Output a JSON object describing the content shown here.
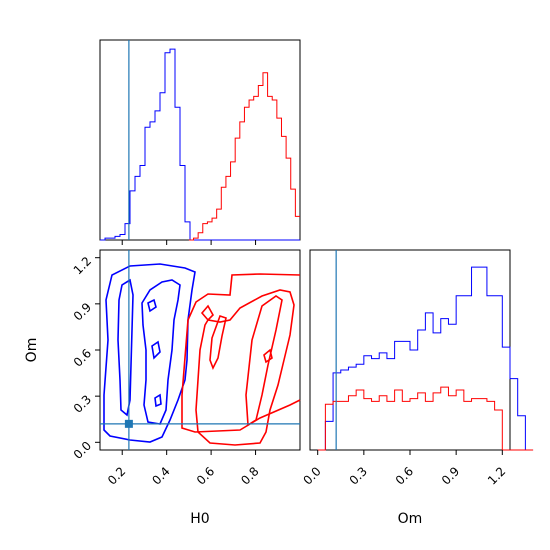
{
  "chart_data": {
    "type": "corner",
    "parameters": [
      "H0",
      "Om"
    ],
    "truths": {
      "H0": 0.23,
      "Om": 0.12
    },
    "colors": {
      "series_a": "#0000ff",
      "series_b": "#ff0000",
      "truth": "#1f77b4"
    },
    "panels": [
      {
        "id": "hist-H0",
        "type": "histogram",
        "xlabel": "",
        "xlim": [
          0.1,
          1.0
        ],
        "xticks": [
          0.2,
          0.4,
          0.6,
          0.8
        ],
        "tick_labels_shown": false,
        "bin_edges": [
          0.1,
          0.1225,
          0.145,
          0.1675,
          0.19,
          0.2125,
          0.235,
          0.2575,
          0.28,
          0.3025,
          0.325,
          0.3475,
          0.37,
          0.3925,
          0.415,
          0.4375,
          0.46,
          0.4825,
          0.505,
          0.5275,
          0.55,
          0.5725,
          0.595,
          0.6175,
          0.64,
          0.6625,
          0.685,
          0.7075,
          0.73,
          0.7525,
          0.775,
          0.7975,
          0.82,
          0.8425,
          0.865,
          0.8875,
          0.91,
          0.9325,
          0.955,
          0.9775,
          1.0
        ],
        "series": [
          {
            "counts": [
              0,
              1,
              1,
              2,
              3,
              9,
              27,
              35,
              41,
              62,
              65,
              71,
              81,
              103,
              105,
              73,
              41,
              10,
              0,
              0,
              0,
              0,
              0,
              0,
              0,
              0,
              0,
              0,
              0,
              0,
              0,
              0,
              0,
              0,
              0,
              0,
              0,
              0,
              0,
              0
            ]
          },
          {
            "counts": [
              0,
              0,
              0,
              0,
              0,
              0,
              0,
              0,
              0,
              0,
              0,
              0,
              0,
              0,
              0,
              0,
              0,
              0,
              0,
              0,
              0,
              0,
              0,
              0,
              0,
              0,
              0,
              0,
              0,
              0,
              0,
              0,
              0,
              0,
              0,
              0,
              0,
              0,
              0,
              0
            ]
          }
        ],
        "series_b_bins": {
          "x_start": 0.5,
          "x_end": 1.0,
          "counts": [
            0,
            1,
            4,
            9,
            10,
            12,
            17,
            29,
            35,
            43,
            56,
            65,
            73,
            77,
            79,
            85,
            92,
            79,
            77,
            67,
            57,
            45,
            28,
            13
          ]
        },
        "ylim": [
          0,
          110
        ]
      },
      {
        "id": "contour-H0-Om",
        "type": "contour",
        "xlabel": "H0",
        "ylabel": "Om",
        "xlim": [
          0.1,
          1.0
        ],
        "ylim": [
          -0.05,
          1.25
        ],
        "xticks": [
          0.2,
          0.4,
          0.6,
          0.8
        ],
        "xtick_labels": [
          "0.2",
          "0.4",
          "0.6",
          "0.8"
        ],
        "yticks": [
          0.0,
          0.3,
          0.6,
          0.9,
          1.2
        ],
        "ytick_labels": [
          "0.0",
          "0.3",
          "0.6",
          "0.9",
          "1.2"
        ]
      },
      {
        "id": "hist-Om",
        "type": "histogram",
        "xlabel": "Om",
        "xlim": [
          -0.05,
          1.25
        ],
        "xticks": [
          0.0,
          0.3,
          0.6,
          0.9,
          1.2
        ],
        "xtick_labels": [
          "0.0",
          "0.3",
          "0.6",
          "0.9",
          "1.2"
        ],
        "bin_x_start": 0.0,
        "bin_width": 0.05,
        "series": [
          {
            "counts": [
              0,
              10,
              27,
              28,
              29,
              30,
              33,
              32,
              34,
              32,
              38,
              38,
              35,
              42,
              48,
              41,
              46,
              44,
              54,
              54,
              64,
              64,
              54,
              54,
              36,
              25,
              12,
              0
            ]
          },
          {
            "counts": [
              0,
              16,
              17,
              17,
              19,
              21,
              18,
              17,
              19,
              17,
              21,
              17,
              18,
              20,
              17,
              20,
              22,
              19,
              21,
              17,
              18,
              18,
              17,
              14,
              0,
              0,
              0,
              0
            ]
          }
        ],
        "ylim": [
          0,
          70
        ]
      }
    ]
  }
}
